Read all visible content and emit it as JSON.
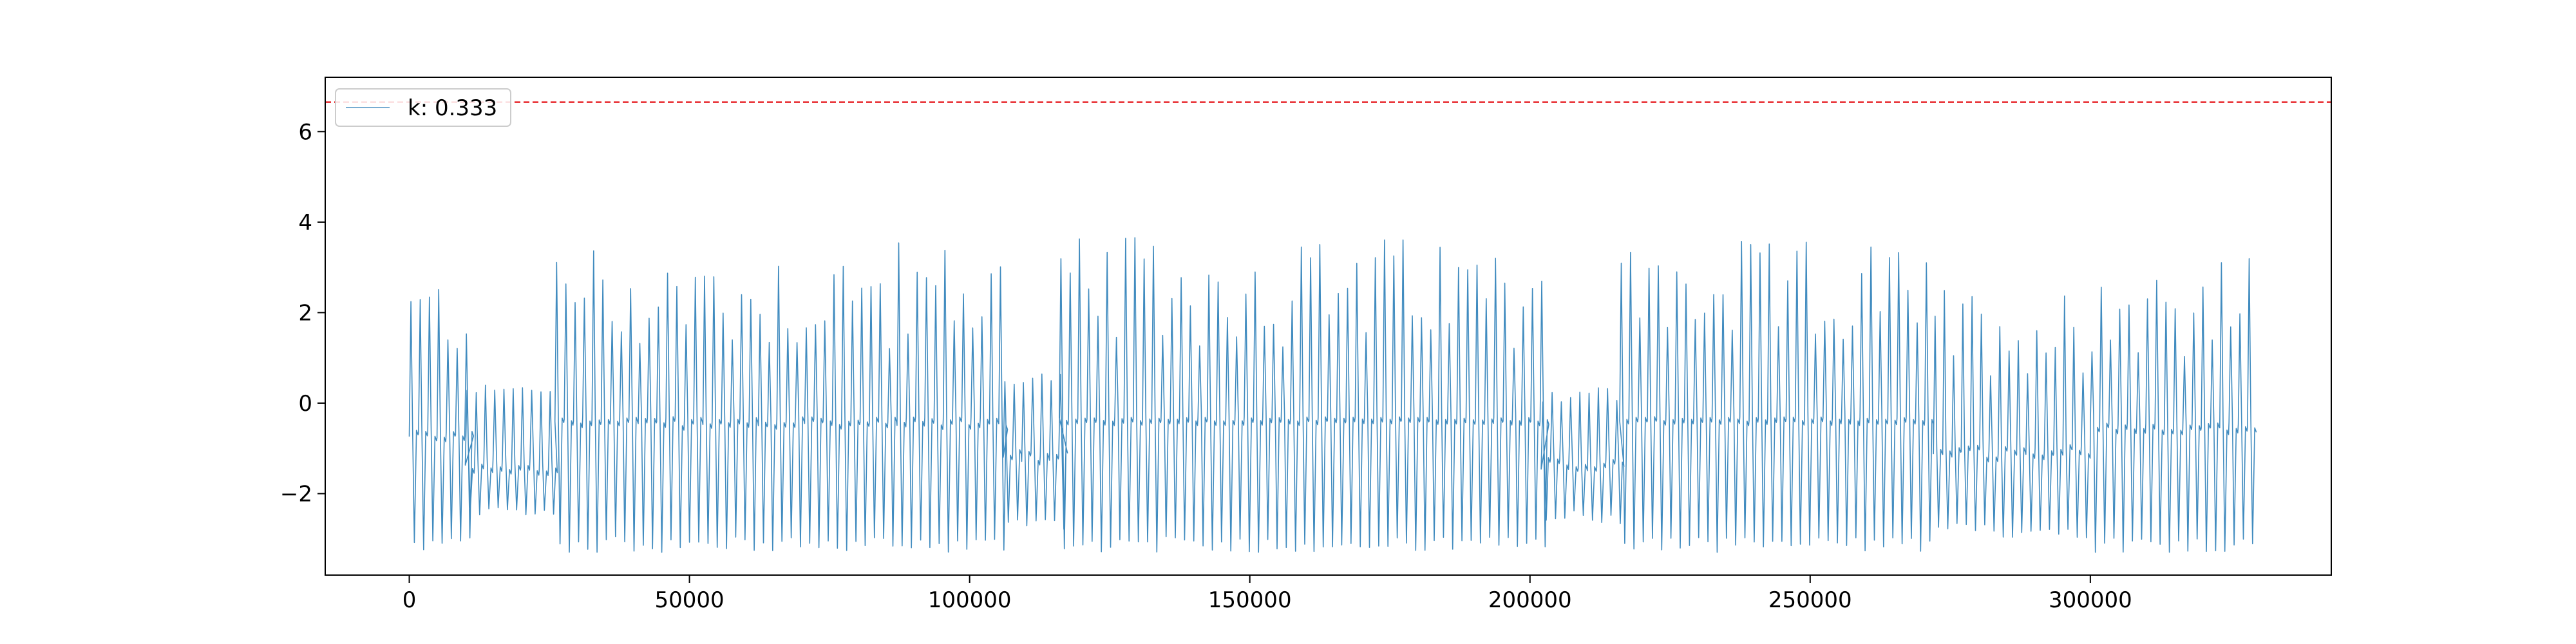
{
  "chart_data": {
    "type": "line",
    "title": "",
    "xlabel": "",
    "ylabel": "",
    "xlim": [
      -15000,
      343000
    ],
    "ylim": [
      -3.8,
      7.2
    ],
    "x_ticks": [
      0,
      50000,
      100000,
      150000,
      200000,
      250000,
      300000
    ],
    "y_ticks": [
      -2,
      0,
      2,
      4,
      6
    ],
    "x_tick_labels": [
      "0",
      "50000",
      "100000",
      "150000",
      "200000",
      "250000",
      "300000"
    ],
    "y_tick_labels": [
      "−2",
      "0",
      "2",
      "4",
      "6"
    ],
    "grid": false,
    "legend": {
      "placement": "top-left",
      "entries": [
        {
          "label": "k: 0.333"
        }
      ]
    },
    "threshold": {
      "y": 6.65,
      "color": "#e8262b",
      "style": "dashed"
    },
    "series": [
      {
        "name": "k: 0.333",
        "color": "#1f77b4",
        "x_range": [
          0,
          329000
        ],
        "cycle_length": 1650,
        "segments": [
          {
            "x_start": 0,
            "x_end": 10000,
            "upper": [
              1.0,
              2.9
            ],
            "center": [
              -0.8,
              -0.6
            ],
            "lower": -3.3
          },
          {
            "x_start": 10000,
            "x_end": 26000,
            "upper": [
              0.2,
              0.4
            ],
            "center": [
              -1.5,
              -1.2
            ],
            "lower": -2.6
          },
          {
            "x_start": 26000,
            "x_end": 106000,
            "upper": [
              1.1,
              3.6
            ],
            "center": [
              -0.5,
              -0.3
            ],
            "lower": -3.3
          },
          {
            "x_start": 106000,
            "x_end": 116000,
            "upper": [
              0.4,
              0.7
            ],
            "center": [
              -1.3,
              -1.0
            ],
            "lower": -2.8
          },
          {
            "x_start": 116000,
            "x_end": 202000,
            "upper": [
              1.2,
              3.7
            ],
            "center": [
              -0.4,
              -0.3
            ],
            "lower": -3.3
          },
          {
            "x_start": 202000,
            "x_end": 216000,
            "upper": [
              0.0,
              0.4
            ],
            "center": [
              -1.5,
              -1.2
            ],
            "lower": -2.7
          },
          {
            "x_start": 216000,
            "x_end": 272000,
            "upper": [
              1.2,
              3.6
            ],
            "center": [
              -0.4,
              -0.3
            ],
            "lower": -3.3
          },
          {
            "x_start": 272000,
            "x_end": 300000,
            "upper": [
              0.6,
              2.6
            ],
            "center": [
              -1.2,
              -0.9
            ],
            "lower": -3.0
          },
          {
            "x_start": 300000,
            "x_end": 329000,
            "upper": [
              1.0,
              3.3
            ],
            "center": [
              -0.6,
              -0.4
            ],
            "lower": -3.3
          }
        ]
      }
    ]
  }
}
